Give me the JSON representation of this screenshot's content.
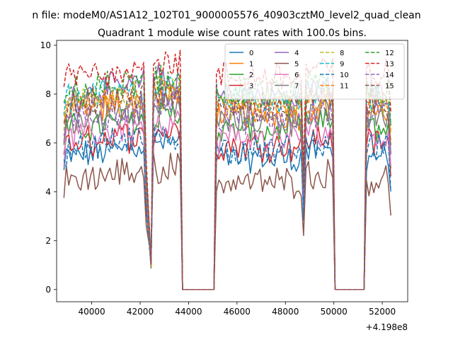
{
  "chart_data": {
    "type": "line",
    "suptitle": "n file: modeM0/AS1A12_102T01_9000005576_40903cztM0_level2_quad_clean",
    "title": "Quadrant 1 module wise count rates with 100.0s bins.",
    "xlabel": "",
    "ylabel": "",
    "x_offset_label": "+4.198e8",
    "xlim": [
      38550,
      53050
    ],
    "ylim": [
      -0.5,
      10.2
    ],
    "x_ticks": [
      40000,
      42000,
      44000,
      46000,
      48000,
      50000,
      52000
    ],
    "x_tick_labels": [
      "40000",
      "42000",
      "44000",
      "46000",
      "48000",
      "50000",
      "52000"
    ],
    "y_ticks": [
      0,
      2,
      4,
      6,
      8,
      10
    ],
    "y_tick_labels": [
      "0",
      "2",
      "4",
      "6",
      "8",
      "10"
    ],
    "bin_seconds": 100,
    "grid": false,
    "legend": {
      "placement": "top-right",
      "columns": 4
    },
    "segments": [
      {
        "x_start": 38850,
        "x_end": 42150,
        "x_drop": 42450,
        "x_next": 42550
      },
      {
        "x_start": 42550,
        "x_end": 43650,
        "x_drop": 43750,
        "x_zero_end": 45050
      },
      {
        "x_start": 45050,
        "x_end": 48650,
        "x_drop": 48750,
        "x_next": 48850
      },
      {
        "x_start": 48850,
        "x_end": 49950,
        "x_drop": 50050,
        "x_zero_end": 51250
      },
      {
        "x_start": 51250,
        "x_end": 52350
      }
    ],
    "series": [
      {
        "name": "0",
        "color": "#1f77b4",
        "dash": "solid",
        "level": 5.4
      },
      {
        "name": "1",
        "color": "#ff7f0e",
        "dash": "solid",
        "level": 7.2
      },
      {
        "name": "2",
        "color": "#2ca02c",
        "dash": "solid",
        "level": 6.5
      },
      {
        "name": "3",
        "color": "#d62728",
        "dash": "solid",
        "level": 5.9
      },
      {
        "name": "4",
        "color": "#9467bd",
        "dash": "solid",
        "level": 7.9
      },
      {
        "name": "5",
        "color": "#8c564b",
        "dash": "solid",
        "level": 4.4
      },
      {
        "name": "6",
        "color": "#e377c2",
        "dash": "solid",
        "level": 6.2
      },
      {
        "name": "7",
        "color": "#7f7f7f",
        "dash": "solid",
        "level": 6.9
      },
      {
        "name": "8",
        "color": "#bcbd22",
        "dash": "dashed",
        "level": 7.6
      },
      {
        "name": "9",
        "color": "#17becf",
        "dash": "dashed",
        "level": 7.8
      },
      {
        "name": "10",
        "color": "#1f77b4",
        "dash": "dashed",
        "level": 5.7
      },
      {
        "name": "11",
        "color": "#ff7f0e",
        "dash": "dashed",
        "level": 7.4
      },
      {
        "name": "12",
        "color": "#2ca02c",
        "dash": "dashed",
        "level": 8.0
      },
      {
        "name": "13",
        "color": "#d62728",
        "dash": "dashed",
        "level": 8.7
      },
      {
        "name": "14",
        "color": "#9467bd",
        "dash": "dashed",
        "level": 7.0
      },
      {
        "name": "15",
        "color": "#8c564b",
        "dash": "dashed",
        "level": 7.5
      }
    ]
  }
}
